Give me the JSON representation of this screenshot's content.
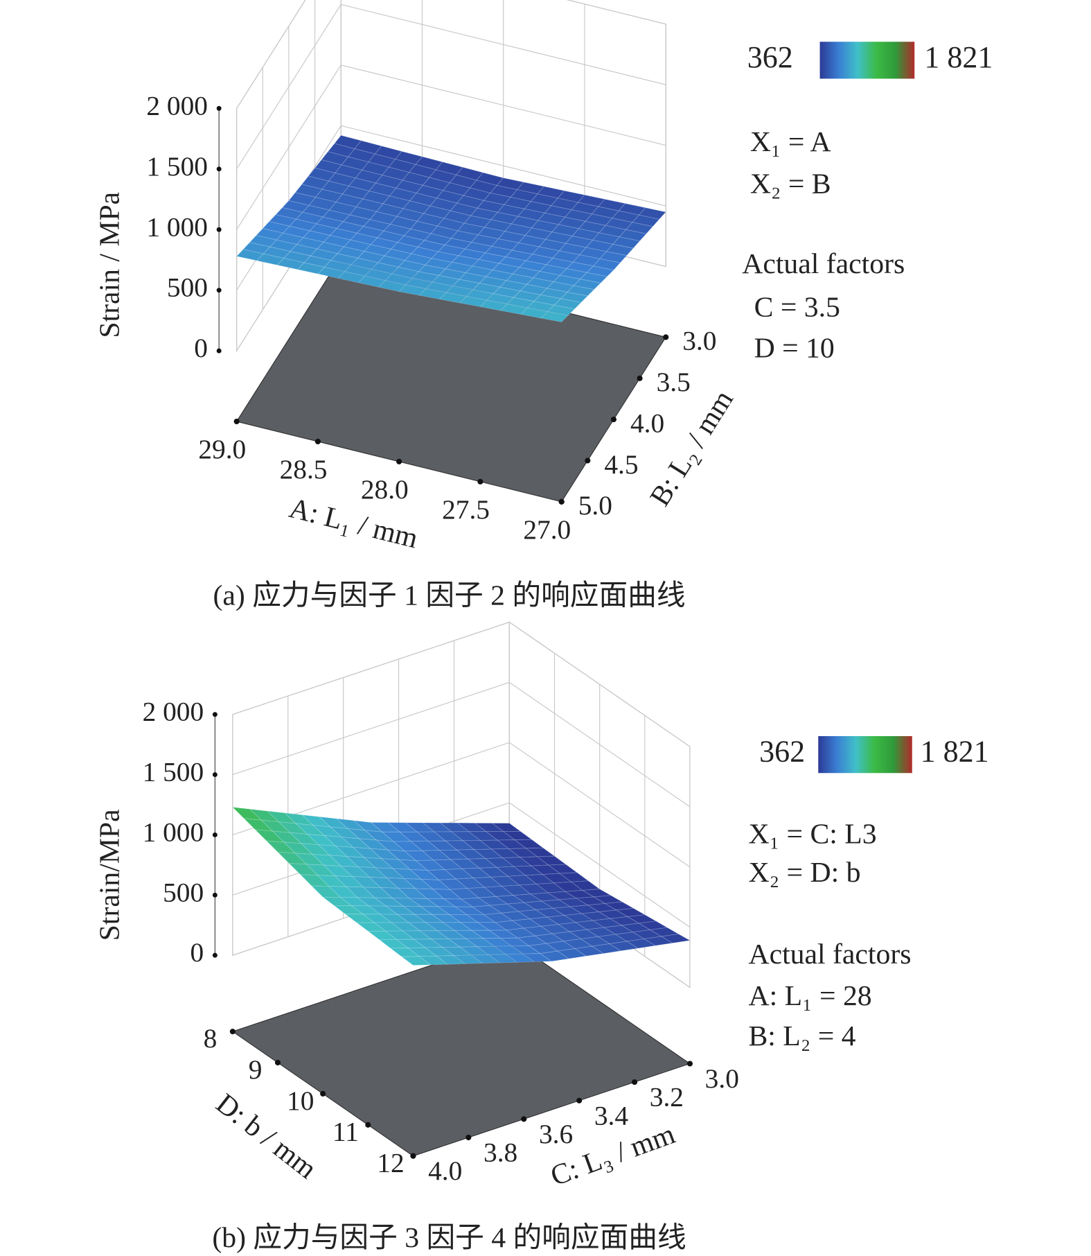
{
  "chart_data": [
    {
      "type": "surface3d",
      "caption": "(a) 应力与因子 1 因子 2 的响应面曲线",
      "xlabel": "A: L₁ / mm",
      "ylabel": "B: L₂ / mm",
      "zlabel": "Strain / MPa",
      "xlim": [
        29,
        27
      ],
      "xticks": [
        {
          "value": 29,
          "label": "29.0"
        },
        28.5,
        {
          "value": 28,
          "label": "28.0"
        },
        27.5,
        {
          "value": 27,
          "label": "27.0"
        }
      ],
      "ylim": [
        5,
        3
      ],
      "yticks": [
        {
          "value": 5,
          "label": "5.0"
        },
        4.5,
        {
          "value": 4,
          "label": "4.0"
        },
        3.5,
        {
          "value": 3,
          "label": "3.0"
        }
      ],
      "zlim": [
        0,
        2000
      ],
      "zticks": [
        0,
        500,
        {
          "value": 1000,
          "label": "1 000"
        },
        {
          "value": 1500,
          "label": "1 500"
        },
        {
          "value": 2000,
          "label": "2 000"
        }
      ],
      "x": [
        29,
        28,
        27
      ],
      "y": [
        5,
        4,
        3
      ],
      "z": [
        [
          780,
          560,
          420
        ],
        [
          820,
          580,
          400
        ],
        [
          900,
          650,
          450
        ]
      ],
      "clim": [
        362,
        {
          "value": 1821,
          "label": "1 821"
        }
      ],
      "clim_colors": [
        "#2b3f93",
        "#b5242c"
      ],
      "colormap": [
        "#2c3a96",
        "#3a7fd3",
        "#40c0c8",
        "#3cba45",
        "#2f9a3a",
        "#b22a2a"
      ],
      "floor_color": "#5b5e63",
      "annotations": [
        "X₁ = A",
        "X₂ = B",
        "Actual factors",
        "C = 3.5",
        "D = 10"
      ]
    },
    {
      "type": "surface3d",
      "caption": "(b) 应力与因子 3 因子 4 的响应面曲线",
      "xlabel": "D: b / mm",
      "ylabel": "C: L₃ / mm",
      "zlabel": "Strain/MPa",
      "xlim": [
        8,
        12
      ],
      "xticks": [
        8,
        9,
        10,
        11,
        12
      ],
      "ylim": [
        4,
        3
      ],
      "yticks": [
        {
          "value": 4,
          "label": "4.0"
        },
        3.8,
        3.6,
        3.4,
        3.2,
        {
          "value": 3,
          "label": "3.0"
        }
      ],
      "zlim": [
        0,
        2000
      ],
      "zticks": [
        0,
        500,
        {
          "value": 1000,
          "label": "1 000"
        },
        {
          "value": 1500,
          "label": "1 500"
        },
        {
          "value": 2000,
          "label": "2 000"
        }
      ],
      "x": [
        8,
        10,
        12
      ],
      "y": [
        4,
        3.5,
        3
      ],
      "z": [
        [
          1230,
          720,
          330
        ],
        [
          1000,
          600,
          300
        ],
        [
          950,
          600,
          390
        ]
      ],
      "clim": [
        362,
        {
          "value": 1821,
          "label": "1 821"
        }
      ],
      "clim_colors": [
        "#2b3f93",
        "#b5242c"
      ],
      "colormap": [
        "#2c3a96",
        "#3a7fd3",
        "#40c0c8",
        "#3cba45",
        "#2f9a3a",
        "#b22a2a"
      ],
      "floor_color": "#5b5e63",
      "annotations": [
        "X₁ = C: L3",
        "X₂ = D: b",
        "Actual factors",
        "A: L₁ = 28",
        "B: L₂ = 4"
      ]
    }
  ]
}
